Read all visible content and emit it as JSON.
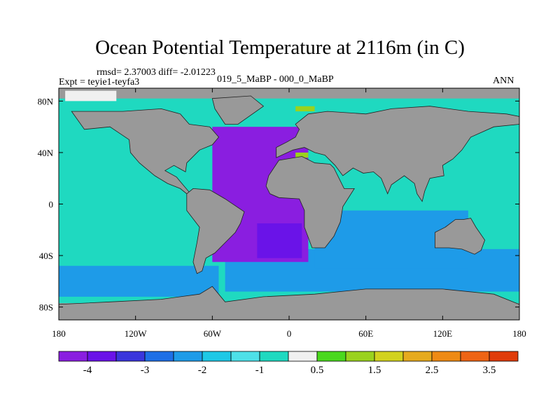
{
  "title": "Ocean Potential Temperature at 2116m (in C)",
  "stats": "rmsd= 2.37003 diff= -2.01223",
  "expt": "Expt = teyie1-teyfa3",
  "comparison": "019_5_MaBP - 000_0_MaBP",
  "season": "ANN",
  "colors": {
    "land": "#999999",
    "frame": "#000000",
    "bins": [
      "#8a1ee0",
      "#6a13e8",
      "#3a36dc",
      "#1e6fe6",
      "#1e9be8",
      "#1ec8e6",
      "#4ee0e8",
      "#1fd9c0",
      "#f0f0f0",
      "#4ad81e",
      "#9ad21e",
      "#d2d21e",
      "#e6aa1e",
      "#ee8a14",
      "#ee6414",
      "#e03c0a"
    ]
  },
  "chart_data": {
    "type": "heatmap",
    "title": "Ocean Potential Temperature at 2116m (in C)",
    "xlim": [
      -180,
      180
    ],
    "ylim": [
      -90,
      90
    ],
    "x_ticks": [
      {
        "value": -180,
        "label": "180"
      },
      {
        "value": -120,
        "label": "120W"
      },
      {
        "value": -60,
        "label": "60W"
      },
      {
        "value": 0,
        "label": "0"
      },
      {
        "value": 60,
        "label": "60E"
      },
      {
        "value": 120,
        "label": "120E"
      },
      {
        "value": 180,
        "label": "180"
      }
    ],
    "y_ticks": [
      {
        "value": 80,
        "label": "80N"
      },
      {
        "value": 40,
        "label": "40N"
      },
      {
        "value": 0,
        "label": "0"
      },
      {
        "value": -40,
        "label": "40S"
      },
      {
        "value": -80,
        "label": "80S"
      }
    ],
    "colorbar": {
      "levels": [
        -4.5,
        -4,
        -3.5,
        -3,
        -2.5,
        -2,
        -1.5,
        -1,
        -0.5,
        0.5,
        1,
        1.5,
        2,
        2.5,
        3,
        3.5,
        4
      ],
      "labels": [
        {
          "value": -4,
          "label": "-4"
        },
        {
          "value": -3,
          "label": "-3"
        },
        {
          "value": -2,
          "label": "-2"
        },
        {
          "value": -1,
          "label": "-1"
        },
        {
          "value": 0.5,
          "label": "0.5"
        },
        {
          "value": 1.5,
          "label": "1.5"
        },
        {
          "value": 2.5,
          "label": "2.5"
        },
        {
          "value": 3.5,
          "label": "3.5"
        }
      ]
    },
    "regions": [
      {
        "name": "global-ocean-background",
        "value": -1.0,
        "lon": [
          -180,
          180
        ],
        "lat": [
          -77,
          82
        ]
      },
      {
        "name": "south-pacific-band",
        "value": -2.2,
        "lon": [
          -180,
          -55
        ],
        "lat": [
          -72,
          -48
        ]
      },
      {
        "name": "southern-ocean-band",
        "value": -2.4,
        "lon": [
          -50,
          180
        ],
        "lat": [
          -68,
          -35
        ]
      },
      {
        "name": "indian-ocean-south",
        "value": -2.1,
        "lon": [
          20,
          140
        ],
        "lat": [
          -50,
          -5
        ]
      },
      {
        "name": "atlantic-deep-cold",
        "value": -4.1,
        "lon": [
          -60,
          15
        ],
        "lat": [
          -45,
          60
        ]
      },
      {
        "name": "south-atlantic-core",
        "value": -3.6,
        "lon": [
          -25,
          10
        ],
        "lat": [
          -42,
          -15
        ]
      },
      {
        "name": "arctic-near-zero",
        "value": 0.0,
        "lon": [
          -175,
          -135
        ],
        "lat": [
          80,
          88
        ]
      },
      {
        "name": "mediterranean-warm",
        "value": 1.2,
        "lon": [
          5,
          15
        ],
        "lat": [
          36,
          40
        ]
      },
      {
        "name": "barents-warm",
        "value": 1.4,
        "lon": [
          5,
          20
        ],
        "lat": [
          72,
          76
        ]
      }
    ]
  }
}
